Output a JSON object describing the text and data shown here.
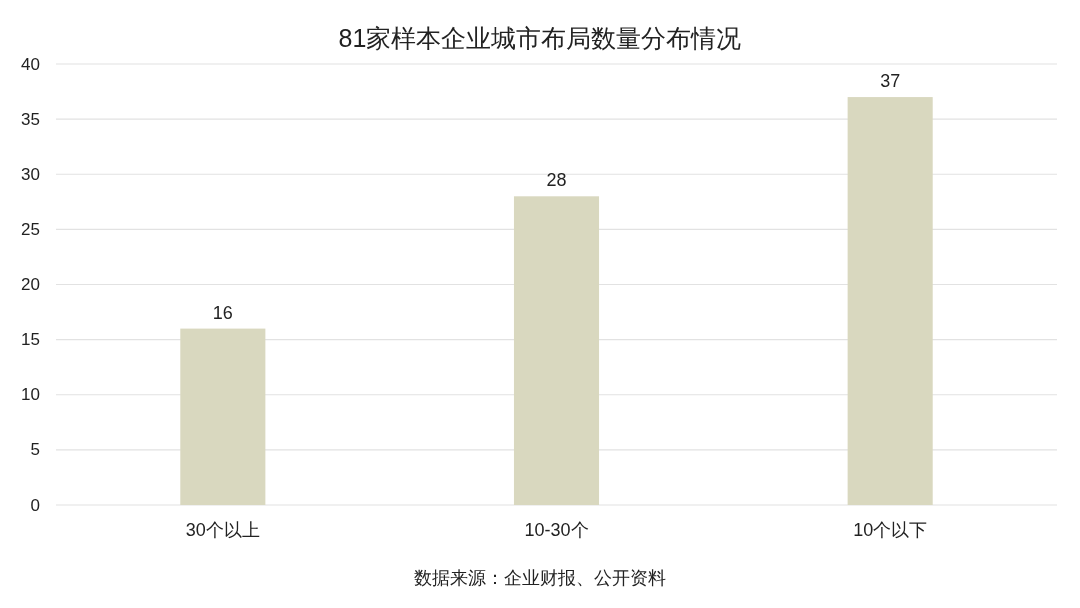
{
  "chart_data": {
    "type": "bar",
    "title": "81家样本企业城市布局数量分布情况",
    "categories": [
      "30个以上",
      "10-30个",
      "10个以下"
    ],
    "values": [
      16,
      28,
      37
    ],
    "color": "#d9d8bf",
    "ylim": [
      0,
      40
    ],
    "yticks": [
      0,
      5,
      10,
      15,
      20,
      25,
      30,
      35,
      40
    ],
    "grid": "y",
    "data_labels": true,
    "annotations": [
      "数据来源：企业财报、公开资料"
    ]
  }
}
